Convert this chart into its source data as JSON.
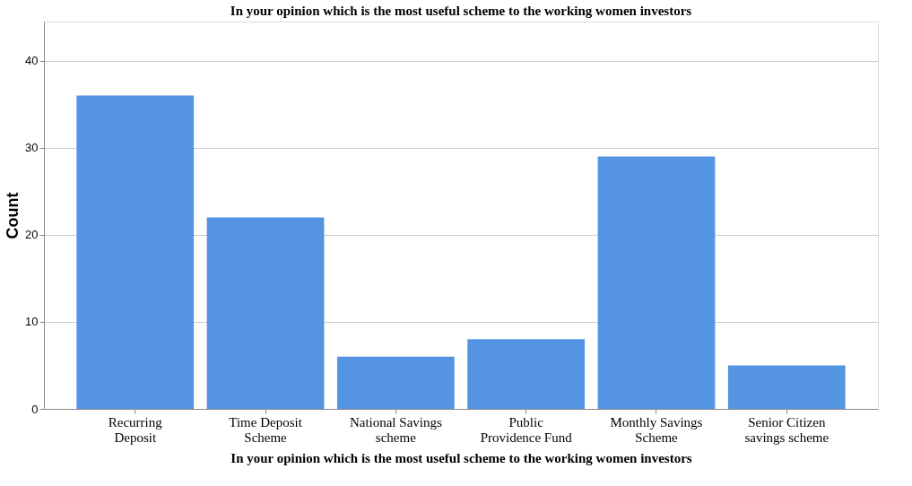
{
  "chart_data": {
    "type": "bar",
    "title": "In your opinion which is the most useful scheme to the working women investors",
    "xlabel": "In your opinion which is the most useful scheme to the working women investors",
    "ylabel": "Count",
    "categories": [
      "Recurring Deposit",
      "Time Deposit Scheme",
      "National Savings scheme",
      "Public Providence Fund",
      "Monthly Savings Scheme",
      "Senior Citizen savings scheme"
    ],
    "values": [
      36,
      22,
      6,
      8,
      29,
      5
    ],
    "color": "#5594e3",
    "ylim": [
      0,
      44.5
    ],
    "yticks": [
      0,
      10,
      20,
      30,
      40
    ],
    "grid": "y"
  }
}
